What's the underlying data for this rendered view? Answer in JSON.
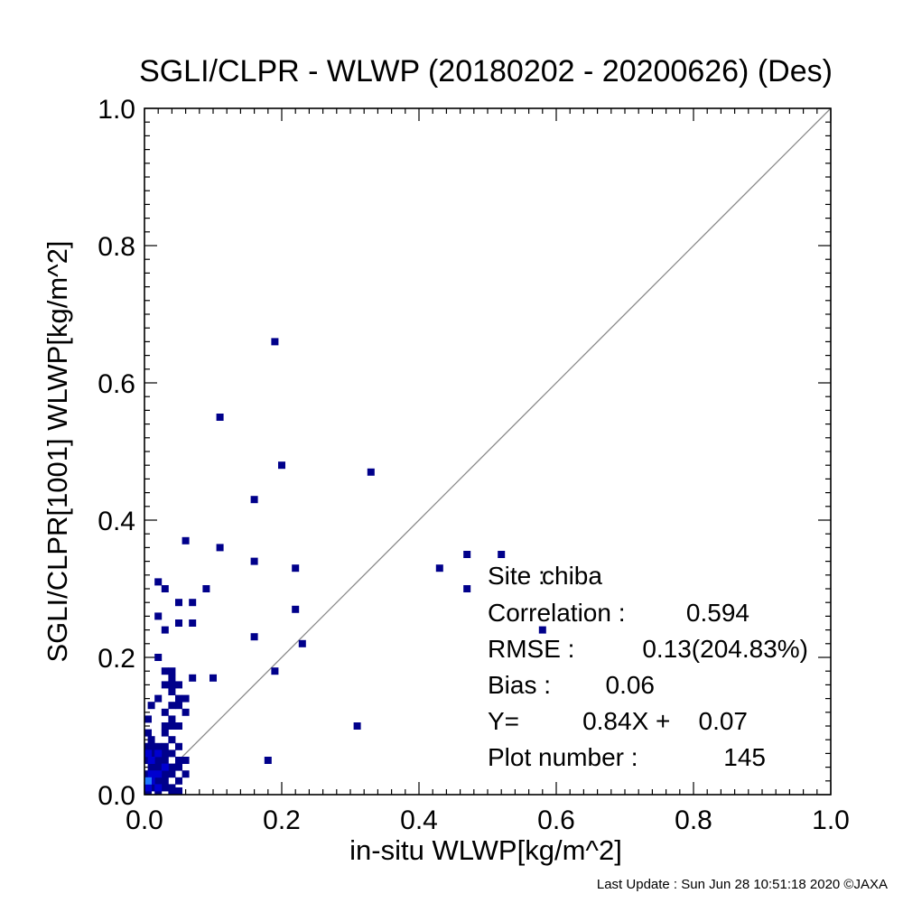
{
  "chart_data": {
    "type": "scatter",
    "title": "SGLI/CLPR - WLWP (20180202 - 20200626) (Des)",
    "xlabel": "in-situ WLWP[kg/m^2]",
    "ylabel": "SGLI/CLPR[1001]    WLWP[kg/m^2]",
    "xlim": [
      0.0,
      1.0
    ],
    "ylim": [
      0.0,
      1.0
    ],
    "x_ticks": [
      "0.0",
      "0.2",
      "0.4",
      "0.6",
      "0.8",
      "1.0"
    ],
    "y_ticks": [
      "0.0",
      "0.2",
      "0.4",
      "0.6",
      "0.8",
      "1.0"
    ],
    "reference_line": "y = x",
    "marker_color": "#00008b",
    "dense_color": "#0000d0",
    "peak_color": "#1e78ff",
    "stats": [
      {
        "label": "Site :",
        "value": "chiba"
      },
      {
        "label": "Correlation :",
        "value": "0.594"
      },
      {
        "label": "RMSE :",
        "value": "0.13(204.83%)"
      },
      {
        "label": "Bias :",
        "value": "0.06"
      },
      {
        "label": "Y=",
        "value": "0.84X +    0.07"
      },
      {
        "label": "Plot number :",
        "value": "145"
      }
    ],
    "points": [
      [
        0.19,
        0.66
      ],
      [
        0.11,
        0.55
      ],
      [
        0.2,
        0.48
      ],
      [
        0.33,
        0.47
      ],
      [
        0.16,
        0.43
      ],
      [
        0.06,
        0.37
      ],
      [
        0.11,
        0.36
      ],
      [
        0.16,
        0.34
      ],
      [
        0.47,
        0.35
      ],
      [
        0.52,
        0.35
      ],
      [
        0.43,
        0.33
      ],
      [
        0.22,
        0.33
      ],
      [
        0.47,
        0.3
      ],
      [
        0.02,
        0.31
      ],
      [
        0.03,
        0.3
      ],
      [
        0.09,
        0.3
      ],
      [
        0.05,
        0.28
      ],
      [
        0.07,
        0.28
      ],
      [
        0.22,
        0.27
      ],
      [
        0.02,
        0.26
      ],
      [
        0.05,
        0.25
      ],
      [
        0.07,
        0.25
      ],
      [
        0.03,
        0.24
      ],
      [
        0.58,
        0.24
      ],
      [
        0.16,
        0.23
      ],
      [
        0.23,
        0.22
      ],
      [
        0.02,
        0.2
      ],
      [
        0.03,
        0.18
      ],
      [
        0.04,
        0.18
      ],
      [
        0.19,
        0.18
      ],
      [
        0.04,
        0.17
      ],
      [
        0.07,
        0.17
      ],
      [
        0.1,
        0.17
      ],
      [
        0.03,
        0.16
      ],
      [
        0.04,
        0.16
      ],
      [
        0.05,
        0.16
      ],
      [
        0.04,
        0.15
      ],
      [
        0.02,
        0.14
      ],
      [
        0.05,
        0.14
      ],
      [
        0.06,
        0.14
      ],
      [
        0.01,
        0.13
      ],
      [
        0.04,
        0.13
      ],
      [
        0.05,
        0.13
      ],
      [
        0.03,
        0.12
      ],
      [
        0.0,
        0.11
      ],
      [
        0.04,
        0.11
      ],
      [
        0.06,
        0.12
      ],
      [
        0.31,
        0.1
      ],
      [
        0.03,
        0.1
      ],
      [
        0.04,
        0.1
      ],
      [
        0.05,
        0.1
      ],
      [
        0.0,
        0.09
      ],
      [
        0.03,
        0.09
      ],
      [
        0.01,
        0.08
      ],
      [
        0.04,
        0.08
      ],
      [
        0.0,
        0.07
      ],
      [
        0.01,
        0.07
      ],
      [
        0.02,
        0.07
      ],
      [
        0.03,
        0.07
      ],
      [
        0.05,
        0.07
      ],
      [
        0.0,
        0.06
      ],
      [
        0.01,
        0.06
      ],
      [
        0.03,
        0.06
      ],
      [
        0.04,
        0.06
      ],
      [
        0.0,
        0.05
      ],
      [
        0.02,
        0.05
      ],
      [
        0.03,
        0.05
      ],
      [
        0.05,
        0.05
      ],
      [
        0.06,
        0.05
      ],
      [
        0.18,
        0.05
      ],
      [
        0.01,
        0.04
      ],
      [
        0.02,
        0.04
      ],
      [
        0.04,
        0.04
      ],
      [
        0.05,
        0.04
      ],
      [
        0.0,
        0.03
      ],
      [
        0.01,
        0.03
      ],
      [
        0.03,
        0.03
      ],
      [
        0.04,
        0.03
      ],
      [
        0.06,
        0.03
      ],
      [
        0.0,
        0.02
      ],
      [
        0.02,
        0.02
      ],
      [
        0.03,
        0.02
      ],
      [
        0.05,
        0.02
      ],
      [
        0.01,
        0.01
      ],
      [
        0.03,
        0.01
      ],
      [
        0.04,
        0.01
      ],
      [
        0.0,
        0.0
      ],
      [
        0.02,
        0.0
      ],
      [
        0.04,
        0.0
      ],
      [
        0.05,
        0.0
      ]
    ],
    "dense_points": [
      [
        0.0,
        0.06
      ],
      [
        0.01,
        0.05
      ],
      [
        0.01,
        0.03
      ],
      [
        0.02,
        0.03
      ],
      [
        0.01,
        0.02
      ],
      [
        0.02,
        0.01
      ],
      [
        0.0,
        0.01
      ],
      [
        0.03,
        0.04
      ],
      [
        0.02,
        0.06
      ]
    ],
    "peak_points": [
      [
        0.0,
        0.02
      ]
    ]
  },
  "footer": "Last Update : Sun Jun 28 10:51:18 2020  ©JAXA"
}
